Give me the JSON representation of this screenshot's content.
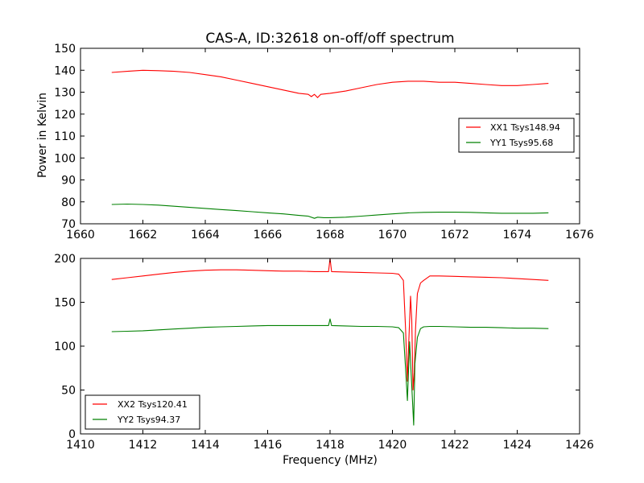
{
  "chart_data": [
    {
      "type": "line",
      "title": "CAS-A, ID:32618 on-off/off spectrum",
      "xlabel": "",
      "ylabel": "Power in Kelvin",
      "xlim": [
        1660,
        1676
      ],
      "ylim": [
        70,
        150
      ],
      "xticks": [
        "1660",
        "1662",
        "1664",
        "1666",
        "1668",
        "1670",
        "1672",
        "1674",
        "1676"
      ],
      "yticks": [
        "70",
        "80",
        "90",
        "100",
        "110",
        "120",
        "130",
        "140",
        "150"
      ],
      "legend_position": "center-right",
      "series": [
        {
          "name": "XX1 Tsys148.94",
          "color": "#ff0000",
          "x": [
            1661.0,
            1661.5,
            1662.0,
            1662.5,
            1663.0,
            1663.5,
            1664.0,
            1664.5,
            1665.0,
            1665.5,
            1666.0,
            1666.5,
            1667.0,
            1667.3,
            1667.4,
            1667.5,
            1667.6,
            1667.7,
            1668.0,
            1668.5,
            1669.0,
            1669.5,
            1670.0,
            1670.5,
            1671.0,
            1671.5,
            1672.0,
            1672.5,
            1673.0,
            1673.5,
            1674.0,
            1674.5,
            1675.0
          ],
          "y": [
            139.0,
            139.5,
            140.0,
            139.8,
            139.5,
            139.0,
            138.0,
            137.0,
            135.5,
            134.0,
            132.5,
            131.0,
            129.5,
            129.0,
            128.0,
            129.0,
            127.5,
            129.0,
            129.5,
            130.5,
            132.0,
            133.5,
            134.5,
            135.0,
            135.0,
            134.5,
            134.5,
            134.0,
            133.5,
            133.0,
            133.0,
            133.5,
            134.0
          ]
        },
        {
          "name": "YY1 Tsys95.68",
          "color": "#008000",
          "x": [
            1661.0,
            1661.5,
            1662.0,
            1662.5,
            1663.0,
            1663.5,
            1664.0,
            1664.5,
            1665.0,
            1665.5,
            1666.0,
            1666.5,
            1667.0,
            1667.3,
            1667.5,
            1667.6,
            1667.8,
            1668.0,
            1668.5,
            1669.0,
            1669.5,
            1670.0,
            1670.5,
            1671.0,
            1671.5,
            1672.0,
            1672.5,
            1673.0,
            1673.5,
            1674.0,
            1674.5,
            1675.0
          ],
          "y": [
            78.8,
            79.0,
            78.8,
            78.5,
            78.0,
            77.5,
            77.0,
            76.5,
            76.0,
            75.5,
            75.0,
            74.5,
            73.8,
            73.5,
            72.5,
            73.0,
            72.8,
            72.8,
            73.0,
            73.5,
            74.0,
            74.5,
            75.0,
            75.2,
            75.3,
            75.3,
            75.2,
            75.0,
            74.8,
            74.8,
            74.8,
            75.0
          ]
        }
      ]
    },
    {
      "type": "line",
      "title": "",
      "xlabel": "Frequency (MHz)",
      "ylabel": "",
      "xlim": [
        1410,
        1426
      ],
      "ylim": [
        0,
        200
      ],
      "xticks": [
        "1410",
        "1412",
        "1414",
        "1416",
        "1418",
        "1420",
        "1422",
        "1424",
        "1426"
      ],
      "yticks": [
        "0",
        "50",
        "100",
        "150",
        "200"
      ],
      "legend_position": "lower-left",
      "series": [
        {
          "name": "XX2 Tsys120.41",
          "color": "#ff0000",
          "x": [
            1411.0,
            1411.5,
            1412.0,
            1412.5,
            1413.0,
            1413.5,
            1414.0,
            1414.5,
            1415.0,
            1415.5,
            1416.0,
            1416.5,
            1417.0,
            1417.5,
            1417.95,
            1418.0,
            1418.05,
            1418.5,
            1419.0,
            1419.5,
            1420.0,
            1420.2,
            1420.35,
            1420.42,
            1420.48,
            1420.52,
            1420.58,
            1420.62,
            1420.66,
            1420.7,
            1420.74,
            1420.8,
            1420.9,
            1421.0,
            1421.2,
            1421.5,
            1422.0,
            1422.5,
            1423.0,
            1423.5,
            1424.0,
            1424.5,
            1425.0
          ],
          "y": [
            176,
            178,
            180,
            182,
            184,
            185.5,
            186.5,
            187,
            187,
            186.5,
            186,
            185.5,
            185.5,
            185,
            185,
            200,
            185,
            184.5,
            184,
            183.5,
            183,
            182,
            175,
            120,
            60,
            100,
            157,
            130,
            50,
            70,
            120,
            160,
            172,
            175,
            180,
            180,
            179.5,
            179,
            178.5,
            178,
            177,
            176,
            175
          ]
        },
        {
          "name": "YY2 Tsys94.37",
          "color": "#008000",
          "x": [
            1411.0,
            1411.5,
            1412.0,
            1412.5,
            1413.0,
            1413.5,
            1414.0,
            1414.5,
            1415.0,
            1415.5,
            1416.0,
            1416.5,
            1417.0,
            1417.5,
            1417.95,
            1418.0,
            1418.05,
            1418.5,
            1419.0,
            1419.5,
            1420.0,
            1420.2,
            1420.35,
            1420.42,
            1420.48,
            1420.55,
            1420.62,
            1420.68,
            1420.72,
            1420.8,
            1420.9,
            1421.0,
            1421.2,
            1421.5,
            1422.0,
            1422.5,
            1423.0,
            1423.5,
            1424.0,
            1424.5,
            1425.0
          ],
          "y": [
            116.5,
            117,
            117.5,
            118.5,
            119.5,
            120.5,
            121.5,
            122,
            122.5,
            123,
            123.5,
            123.5,
            123.5,
            123.5,
            123.5,
            131,
            123.5,
            123,
            122.5,
            122.5,
            122,
            121,
            115,
            75,
            38,
            105,
            55,
            10,
            80,
            110,
            120,
            122,
            122.5,
            122.5,
            122,
            121.5,
            121.5,
            121,
            120.5,
            120.5,
            120
          ]
        }
      ]
    }
  ]
}
